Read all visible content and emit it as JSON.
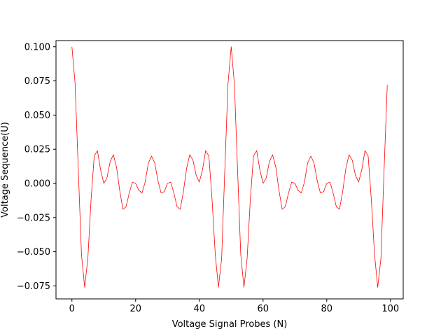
{
  "chart_data": {
    "type": "line",
    "title": "",
    "xlabel": "Voltage Signal Probes (N)",
    "ylabel": "Voltage Sequence(U)",
    "xlim": [
      -5,
      104
    ],
    "ylim": [
      -0.0845,
      0.1045
    ],
    "grid": false,
    "legend": "none",
    "x_ticks": [
      0,
      20,
      40,
      60,
      80,
      100
    ],
    "x_tick_labels": [
      "0",
      "20",
      "40",
      "60",
      "80",
      "100"
    ],
    "y_ticks": [
      -0.075,
      -0.05,
      -0.025,
      0.0,
      0.025,
      0.05,
      0.075,
      0.1
    ],
    "y_tick_labels": [
      "−0.075",
      "−0.050",
      "−0.025",
      "0.000",
      "0.025",
      "0.050",
      "0.075",
      "0.100"
    ],
    "series": [
      {
        "color": "#ff0000",
        "x": [
          0,
          1,
          2,
          3,
          4,
          5,
          6,
          7,
          8,
          9,
          10,
          11,
          12,
          13,
          14,
          15,
          16,
          17,
          18,
          19,
          20,
          21,
          22,
          23,
          24,
          25,
          26,
          27,
          28,
          29,
          30,
          31,
          32,
          33,
          34,
          35,
          36,
          37,
          38,
          39,
          40,
          41,
          42,
          43,
          44,
          45,
          46,
          47,
          48,
          49,
          50,
          51,
          52,
          53,
          54,
          55,
          56,
          57,
          58,
          59,
          60,
          61,
          62,
          63,
          64,
          65,
          66,
          67,
          68,
          69,
          70,
          71,
          72,
          73,
          74,
          75,
          76,
          77,
          78,
          79,
          80,
          81,
          82,
          83,
          84,
          85,
          86,
          87,
          88,
          89,
          90,
          91,
          92,
          93,
          94,
          95,
          96,
          97,
          98,
          99
        ],
        "y": [
          0.1,
          0.073,
          0.01,
          -0.052,
          -0.076,
          -0.055,
          -0.012,
          0.02,
          0.024,
          0.01,
          0.0,
          0.004,
          0.016,
          0.021,
          0.012,
          -0.005,
          -0.019,
          -0.017,
          -0.007,
          0.001,
          0.0,
          -0.005,
          -0.007,
          0.001,
          0.015,
          0.02,
          0.015,
          0.002,
          -0.007,
          -0.006,
          0.0,
          0.001,
          -0.007,
          -0.017,
          -0.019,
          -0.006,
          0.011,
          0.021,
          0.017,
          0.006,
          0.001,
          0.01,
          0.024,
          0.02,
          -0.012,
          -0.052,
          -0.076,
          -0.055,
          0.01,
          0.073,
          0.1,
          0.073,
          0.01,
          -0.052,
          -0.076,
          -0.055,
          -0.012,
          0.02,
          0.024,
          0.01,
          0.0,
          0.004,
          0.016,
          0.021,
          0.012,
          -0.005,
          -0.019,
          -0.017,
          -0.007,
          0.001,
          0.0,
          -0.005,
          -0.007,
          0.001,
          0.015,
          0.02,
          0.015,
          0.002,
          -0.007,
          -0.006,
          0.0,
          0.001,
          -0.007,
          -0.017,
          -0.019,
          -0.006,
          0.011,
          0.021,
          0.017,
          0.006,
          0.001,
          0.01,
          0.024,
          0.02,
          -0.012,
          -0.052,
          -0.076,
          -0.055,
          0.01,
          0.072
        ]
      }
    ]
  }
}
